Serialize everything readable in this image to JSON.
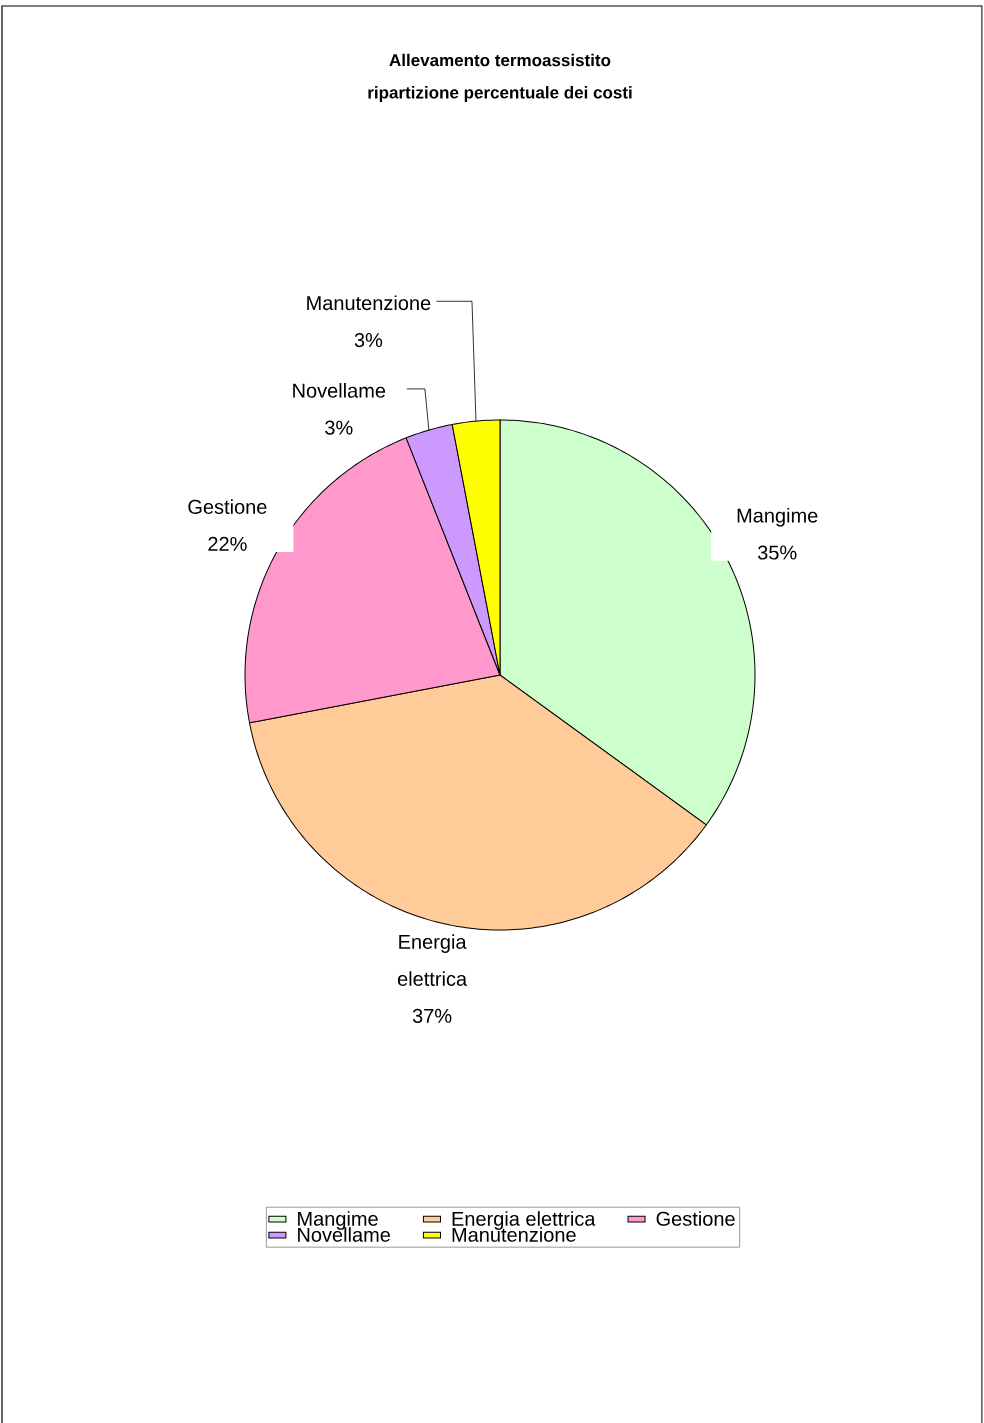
{
  "chart_data": {
    "type": "pie",
    "title": "Allevamento termoassistito",
    "subtitle": "ripartizione percentuale dei costi",
    "categories": [
      "Mangime",
      "Energia elettrica",
      "Gestione",
      "Novellame",
      "Manutenzione"
    ],
    "values": [
      35,
      37,
      22,
      3,
      3
    ],
    "value_labels": [
      "35%",
      "37%",
      "22%",
      "3%",
      "3%"
    ],
    "colors": [
      "#ccffcc",
      "#ffcc99",
      "#ff99cc",
      "#cc99ff",
      "#ffff00"
    ],
    "legend": "bottom"
  }
}
